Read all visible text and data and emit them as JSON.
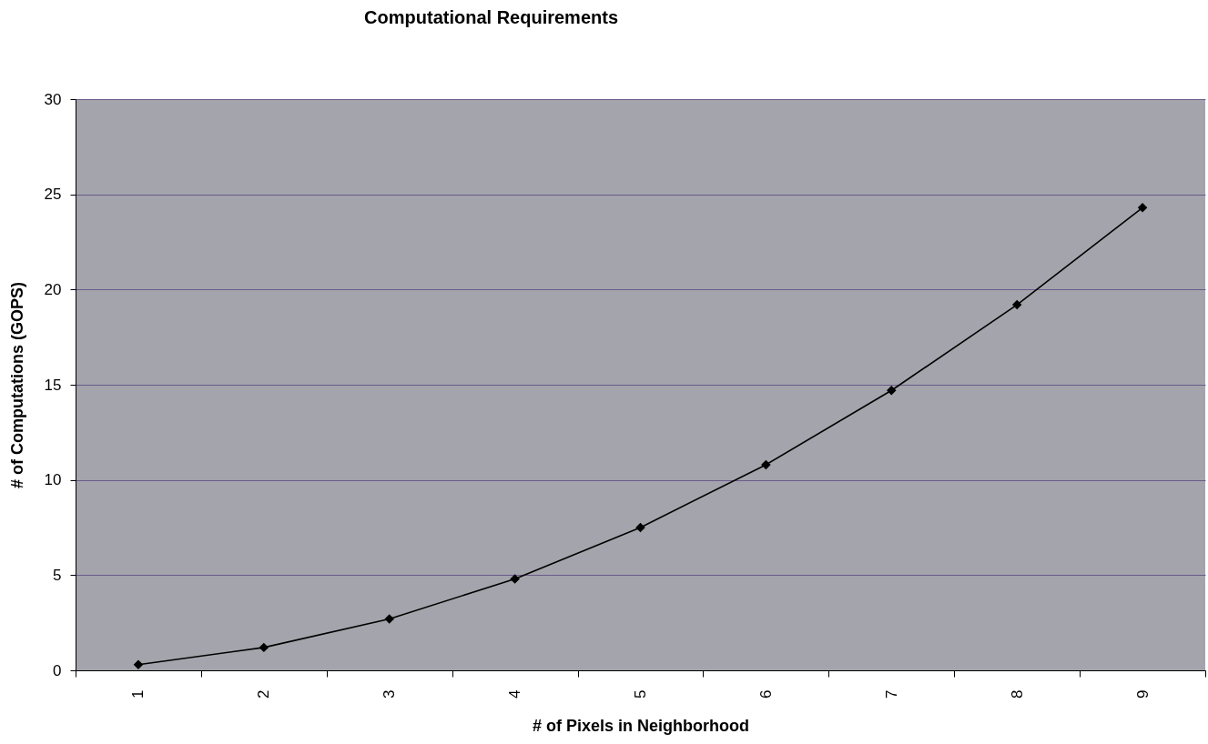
{
  "chart_data": {
    "type": "line",
    "title": "Computational Requirements",
    "xlabel": "# of Pixels in Neighborhood",
    "ylabel": "# of Computations (GOPS)",
    "categories": [
      "1",
      "2",
      "3",
      "4",
      "5",
      "6",
      "7",
      "8",
      "9"
    ],
    "series": [
      {
        "color": "#000000",
        "values": [
          0.3,
          1.2,
          2.7,
          4.8,
          7.5,
          10.8,
          14.7,
          19.2,
          24.3
        ]
      }
    ],
    "ylim": [
      0,
      30
    ],
    "yticks": [
      0,
      5,
      10,
      15,
      20,
      25,
      30
    ],
    "grid": "y",
    "marker": "diamond",
    "line_style": "solid"
  }
}
